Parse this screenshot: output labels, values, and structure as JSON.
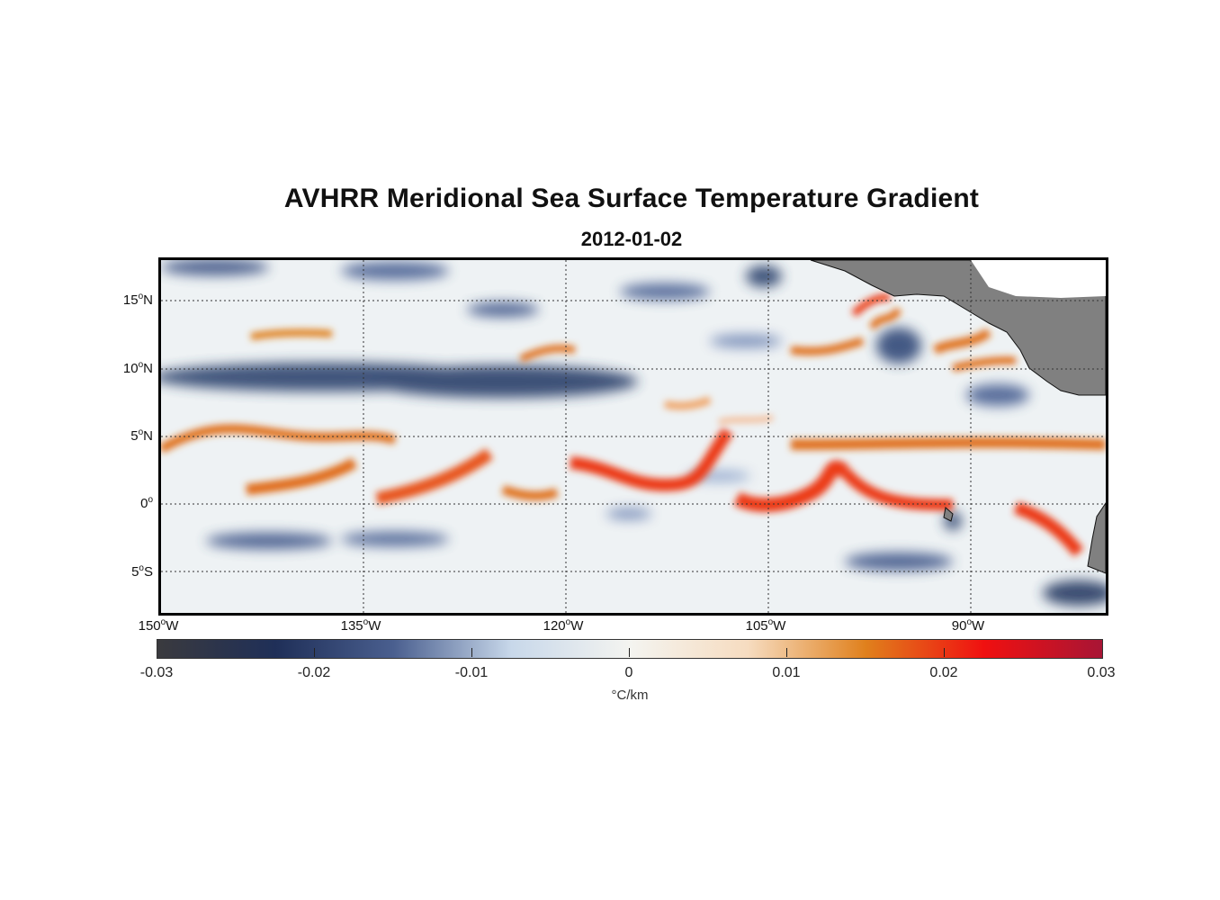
{
  "title": "AVHRR Meridional Sea Surface Temperature Gradient",
  "subtitle": "2012-01-02",
  "map": {
    "lon_range": [
      -150,
      -80
    ],
    "lat_range": [
      -8,
      18
    ],
    "grid": "dotted",
    "land_color": "#808080",
    "lat_ticks": [
      {
        "deg": "15",
        "hemi": "N",
        "value": 15
      },
      {
        "deg": "10",
        "hemi": "N",
        "value": 10
      },
      {
        "deg": "5",
        "hemi": "N",
        "value": 5
      },
      {
        "deg": "0",
        "hemi": "",
        "value": 0
      },
      {
        "deg": "5",
        "hemi": "S",
        "value": -5
      }
    ],
    "lon_ticks": [
      {
        "deg": "150",
        "hemi": "W",
        "value": -150
      },
      {
        "deg": "135",
        "hemi": "W",
        "value": -135
      },
      {
        "deg": "120",
        "hemi": "W",
        "value": -120
      },
      {
        "deg": "105",
        "hemi": "W",
        "value": -105
      },
      {
        "deg": "90",
        "hemi": "W",
        "value": -90
      }
    ]
  },
  "colorbar": {
    "range": [
      -0.03,
      0.03
    ],
    "ticks": [
      "-0.03",
      "-0.02",
      "-0.01",
      "0",
      "0.01",
      "0.02",
      "0.03"
    ],
    "unit": "°C/km",
    "colors": [
      "#3a3a3e",
      "#1f2f58",
      "#4a5f8f",
      "#c8d8ea",
      "#f4f4f0",
      "#f6dcc0",
      "#e0801c",
      "#f01010",
      "#a81535"
    ]
  }
}
